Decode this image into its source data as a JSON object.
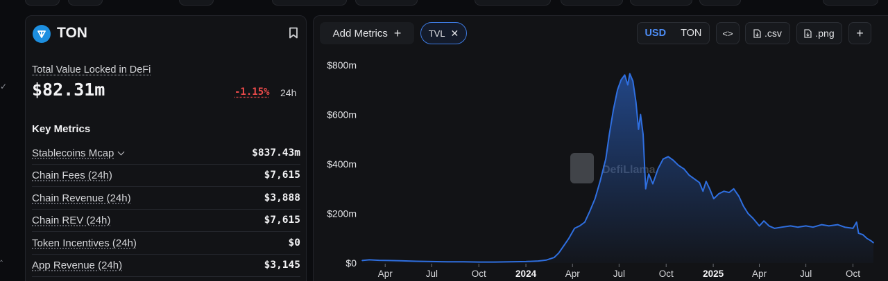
{
  "chain": {
    "name": "TON",
    "logo_icon": "ton-logo-icon",
    "bookmark_icon": "bookmark-icon"
  },
  "tvl": {
    "label": "Total Value Locked in DeFi",
    "value": "$82.31m",
    "change": "-1.15%",
    "period": "24h"
  },
  "key_metrics": {
    "title": "Key Metrics",
    "rows": [
      {
        "label": "Stablecoins Mcap",
        "value": "$837.43m",
        "expandable": true
      },
      {
        "label": "Chain Fees (24h)",
        "value": "$7,615"
      },
      {
        "label": "Chain Revenue (24h)",
        "value": "$3,888"
      },
      {
        "label": "Chain REV (24h)",
        "value": "$7,615"
      },
      {
        "label": "Token Incentives (24h)",
        "value": "$0"
      },
      {
        "label": "App Revenue (24h)",
        "value": "$3,145"
      }
    ]
  },
  "toolbar": {
    "add_metrics": "Add Metrics",
    "add_icon": "plus-icon",
    "metric_chip": "TVL",
    "chip_close_icon": "close-icon",
    "currency_options": [
      "USD",
      "TON"
    ],
    "currency_selected": "USD",
    "embed_label": "<>",
    "csv_label": ".csv",
    "png_label": ".png",
    "file_icon": "file-download-icon",
    "extra_label": "+"
  },
  "watermark": "DefiLlama",
  "colors": {
    "line": "#2f6fe0",
    "negative": "#ef4b4b",
    "accent": "#4d8df6",
    "panel": "#121316"
  },
  "chart_data": {
    "type": "area",
    "series": [
      {
        "values": [
          [
            "2023-02-15",
            10
          ],
          [
            "2023-03-01",
            13
          ],
          [
            "2023-03-20",
            11
          ],
          [
            "2023-04-10",
            10
          ],
          [
            "2023-05-01",
            9
          ],
          [
            "2023-06-01",
            7
          ],
          [
            "2023-07-01",
            6
          ],
          [
            "2023-08-01",
            5
          ],
          [
            "2023-09-01",
            5
          ],
          [
            "2023-10-01",
            4
          ],
          [
            "2023-11-01",
            4
          ],
          [
            "2023-12-01",
            5
          ],
          [
            "2024-01-01",
            6
          ],
          [
            "2024-01-25",
            8
          ],
          [
            "2024-02-10",
            12
          ],
          [
            "2024-02-25",
            22
          ],
          [
            "2024-03-05",
            40
          ],
          [
            "2024-03-15",
            70
          ],
          [
            "2024-03-25",
            100
          ],
          [
            "2024-04-05",
            140
          ],
          [
            "2024-04-15",
            150
          ],
          [
            "2024-04-25",
            165
          ],
          [
            "2024-05-05",
            210
          ],
          [
            "2024-05-15",
            260
          ],
          [
            "2024-05-25",
            330
          ],
          [
            "2024-06-05",
            420
          ],
          [
            "2024-06-12",
            520
          ],
          [
            "2024-06-20",
            620
          ],
          [
            "2024-06-28",
            700
          ],
          [
            "2024-07-05",
            740
          ],
          [
            "2024-07-12",
            760
          ],
          [
            "2024-07-18",
            720
          ],
          [
            "2024-07-22",
            765
          ],
          [
            "2024-07-28",
            735
          ],
          [
            "2024-08-03",
            650
          ],
          [
            "2024-08-08",
            540
          ],
          [
            "2024-08-12",
            600
          ],
          [
            "2024-08-17",
            520
          ],
          [
            "2024-08-22",
            300
          ],
          [
            "2024-08-28",
            360
          ],
          [
            "2024-09-05",
            320
          ],
          [
            "2024-09-15",
            380
          ],
          [
            "2024-09-25",
            420
          ],
          [
            "2024-10-05",
            430
          ],
          [
            "2024-10-15",
            415
          ],
          [
            "2024-10-25",
            395
          ],
          [
            "2024-11-05",
            380
          ],
          [
            "2024-11-15",
            355
          ],
          [
            "2024-11-25",
            340
          ],
          [
            "2024-12-05",
            325
          ],
          [
            "2024-12-12",
            290
          ],
          [
            "2024-12-18",
            330
          ],
          [
            "2024-12-25",
            300
          ],
          [
            "2025-01-02",
            260
          ],
          [
            "2025-01-12",
            280
          ],
          [
            "2025-01-22",
            290
          ],
          [
            "2025-02-01",
            285
          ],
          [
            "2025-02-10",
            300
          ],
          [
            "2025-02-20",
            270
          ],
          [
            "2025-03-01",
            230
          ],
          [
            "2025-03-10",
            200
          ],
          [
            "2025-03-20",
            180
          ],
          [
            "2025-04-01",
            150
          ],
          [
            "2025-04-10",
            170
          ],
          [
            "2025-04-20",
            150
          ],
          [
            "2025-05-01",
            140
          ],
          [
            "2025-05-15",
            145
          ],
          [
            "2025-06-01",
            150
          ],
          [
            "2025-06-15",
            145
          ],
          [
            "2025-07-01",
            150
          ],
          [
            "2025-07-15",
            145
          ],
          [
            "2025-08-01",
            155
          ],
          [
            "2025-08-15",
            150
          ],
          [
            "2025-09-01",
            155
          ],
          [
            "2025-09-15",
            145
          ],
          [
            "2025-10-01",
            140
          ],
          [
            "2025-10-08",
            165
          ],
          [
            "2025-10-12",
            120
          ],
          [
            "2025-10-20",
            115
          ],
          [
            "2025-10-28",
            100
          ],
          [
            "2025-11-05",
            90
          ],
          [
            "2025-11-10",
            82
          ]
        ]
      }
    ],
    "x_ticks": [
      {
        "date": "2023-04-01",
        "label": "Apr"
      },
      {
        "date": "2023-07-01",
        "label": "Jul"
      },
      {
        "date": "2023-10-01",
        "label": "Oct"
      },
      {
        "date": "2024-01-01",
        "label": "2024",
        "bold": true
      },
      {
        "date": "2024-04-01",
        "label": "Apr"
      },
      {
        "date": "2024-07-01",
        "label": "Jul"
      },
      {
        "date": "2024-10-01",
        "label": "Oct"
      },
      {
        "date": "2025-01-01",
        "label": "2025",
        "bold": true
      },
      {
        "date": "2025-04-01",
        "label": "Apr"
      },
      {
        "date": "2025-07-01",
        "label": "Jul"
      },
      {
        "date": "2025-10-01",
        "label": "Oct"
      }
    ],
    "y_ticks": [
      {
        "value": 0,
        "label": "$0"
      },
      {
        "value": 200,
        "label": "$200m"
      },
      {
        "value": 400,
        "label": "$400m"
      },
      {
        "value": 600,
        "label": "$600m"
      },
      {
        "value": 800,
        "label": "$800m"
      }
    ],
    "xlim": [
      "2023-02-15",
      "2025-11-10"
    ],
    "ylim": [
      0,
      800
    ],
    "grid": false
  }
}
